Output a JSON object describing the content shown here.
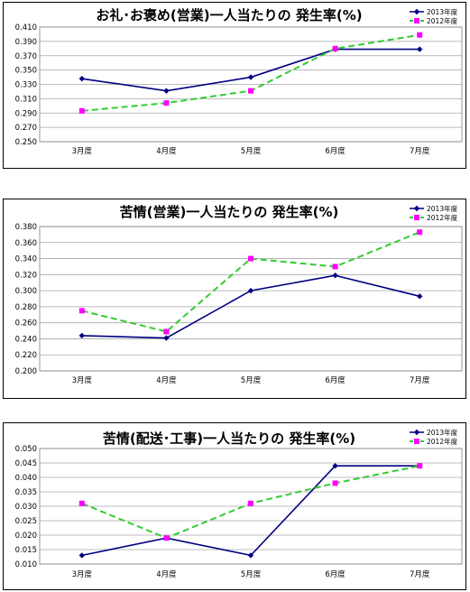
{
  "chart_data": [
    {
      "type": "line",
      "title": "お礼･お褒め(営業)一人当たりの 発生率(%)",
      "categories": [
        "3月度",
        "4月度",
        "5月度",
        "6月度",
        "7月度"
      ],
      "ylim": [
        0.25,
        0.41
      ],
      "yticks": [
        "0.250",
        "0.270",
        "0.290",
        "0.310",
        "0.330",
        "0.350",
        "0.370",
        "0.390",
        "0.410"
      ],
      "legend": "top-right",
      "grid": true,
      "series": [
        {
          "name": "2013年度",
          "color": "#000080",
          "style": "solid",
          "marker": "diamond",
          "values": [
            0.338,
            0.321,
            0.34,
            0.379,
            0.379
          ]
        },
        {
          "name": "2012年度",
          "color": "#33cc33",
          "style": "dashed",
          "marker": "square",
          "marker_color": "#ff00ff",
          "values": [
            0.293,
            0.304,
            0.321,
            0.38,
            0.399
          ]
        }
      ]
    },
    {
      "type": "line",
      "title": "苦情(営業)一人当たりの 発生率(%)",
      "categories": [
        "3月度",
        "4月度",
        "5月度",
        "6月度",
        "7月度"
      ],
      "ylim": [
        0.2,
        0.38
      ],
      "yticks": [
        "0.200",
        "0.220",
        "0.240",
        "0.260",
        "0.280",
        "0.300",
        "0.320",
        "0.340",
        "0.360",
        "0.380"
      ],
      "legend": "top-right",
      "grid": true,
      "series": [
        {
          "name": "2013年度",
          "color": "#000080",
          "style": "solid",
          "marker": "diamond",
          "values": [
            0.244,
            0.241,
            0.3,
            0.319,
            0.293
          ]
        },
        {
          "name": "2012年度",
          "color": "#33cc33",
          "style": "dashed",
          "marker": "square",
          "marker_color": "#ff00ff",
          "values": [
            0.275,
            0.249,
            0.34,
            0.33,
            0.373
          ]
        }
      ]
    },
    {
      "type": "line",
      "title": "苦情(配送･工事)一人当たりの 発生率(%)",
      "categories": [
        "3月度",
        "4月度",
        "5月度",
        "6月度",
        "7月度"
      ],
      "ylim": [
        0.01,
        0.05
      ],
      "yticks": [
        "0.010",
        "0.015",
        "0.020",
        "0.025",
        "0.030",
        "0.035",
        "0.040",
        "0.045",
        "0.050"
      ],
      "legend": "top-right",
      "grid": true,
      "series": [
        {
          "name": "2013年度",
          "color": "#000080",
          "style": "solid",
          "marker": "diamond",
          "values": [
            0.013,
            0.019,
            0.013,
            0.044,
            0.044
          ]
        },
        {
          "name": "2012年度",
          "color": "#33cc33",
          "style": "dashed",
          "marker": "square",
          "marker_color": "#ff00ff",
          "values": [
            0.031,
            0.019,
            0.031,
            0.038,
            0.044
          ]
        }
      ]
    }
  ]
}
